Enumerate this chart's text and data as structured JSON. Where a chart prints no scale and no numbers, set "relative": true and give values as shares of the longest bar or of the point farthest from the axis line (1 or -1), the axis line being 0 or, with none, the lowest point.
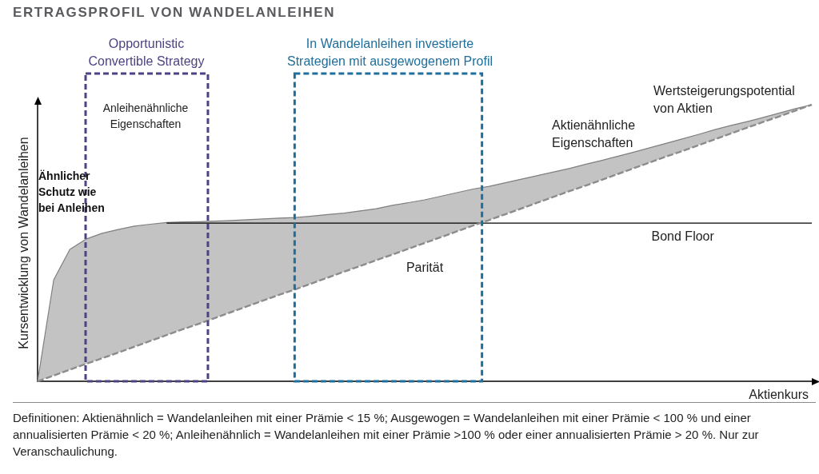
{
  "chart_data": {
    "type": "line",
    "title": "ERTRAGSPROFIL VON WANDELANLEIHEN",
    "xlabel": "Aktienkurs",
    "ylabel": "Kursentwicklung von Wandelanleihen",
    "relative": true,
    "marker": "none",
    "categories": [
      null,
      null,
      null,
      null,
      null,
      null,
      null,
      null,
      null,
      null,
      null,
      null,
      null,
      null,
      null,
      null,
      null,
      null,
      null,
      null,
      null,
      null,
      null,
      null,
      null,
      null,
      null,
      null,
      null,
      null,
      null,
      null,
      null,
      null,
      null,
      null,
      null,
      null,
      null,
      null,
      null,
      null,
      null,
      null,
      null,
      null,
      null,
      null,
      null
    ],
    "series": [
      {
        "color": "#7f7f7f",
        "values": [
          0,
          0.367,
          0.477,
          0.514,
          0.535,
          0.549,
          0.561,
          0.568,
          0.574,
          0.576,
          0.577,
          0.579,
          0.581,
          0.584,
          0.587,
          0.59,
          0.592,
          0.597,
          0.603,
          0.608,
          0.616,
          0.624,
          0.636,
          0.646,
          0.656,
          0.669,
          0.682,
          0.695,
          0.705,
          0.718,
          0.731,
          0.744,
          0.757,
          0.77,
          0.785,
          0.799,
          0.814,
          0.829,
          0.845,
          0.861,
          0.877,
          0.893,
          0.91,
          0.925,
          0.939,
          0.954,
          0.97,
          0.986,
          1
        ],
        "upper": [
          0,
          0.367,
          0.477,
          0.514,
          0.535,
          0.549,
          0.561,
          0.568,
          0.574,
          0.576,
          0.577,
          0.579,
          0.581,
          0.584,
          0.587,
          0.59,
          0.592,
          0.597,
          0.603,
          0.608,
          0.616,
          0.624,
          0.636,
          0.646,
          0.656,
          0.669,
          0.682,
          0.695,
          0.705,
          0.718,
          0.731,
          0.744,
          0.757,
          0.77,
          0.785,
          0.799,
          0.814,
          0.829,
          0.845,
          0.861,
          0.877,
          0.893,
          0.91,
          0.925,
          0.939,
          0.954,
          0.97,
          0.986,
          1
        ],
        "lower": [
          0,
          0.021,
          0.042,
          0.063,
          0.083,
          0.104,
          0.125,
          0.146,
          0.167,
          0.188,
          0.208,
          0.229,
          0.25,
          0.271,
          0.292,
          0.313,
          0.333,
          0.354,
          0.375,
          0.396,
          0.417,
          0.438,
          0.458,
          0.479,
          0.5,
          0.521,
          0.542,
          0.563,
          0.583,
          0.604,
          0.625,
          0.646,
          0.667,
          0.688,
          0.708,
          0.729,
          0.75,
          0.771,
          0.792,
          0.813,
          0.833,
          0.854,
          0.875,
          0.896,
          0.917,
          0.938,
          0.958,
          0.979,
          1
        ]
      },
      {
        "name": "Bond Floor",
        "color": "#000000",
        "values": [
          null,
          null,
          null,
          null,
          null,
          null,
          null,
          null,
          0.572,
          0.572,
          0.572,
          0.572,
          0.572,
          0.572,
          0.572,
          0.572,
          0.572,
          0.572,
          0.572,
          0.572,
          0.572,
          0.572,
          0.572,
          0.572,
          0.572,
          0.572,
          0.572,
          0.572,
          0.572,
          0.572,
          0.572,
          0.572,
          0.572,
          0.572,
          0.572,
          0.572,
          0.572,
          0.572,
          0.572,
          0.572,
          0.572,
          0.572,
          0.572,
          0.572,
          0.572,
          0.572,
          0.572,
          0.572,
          0.572
        ]
      },
      {
        "name": "Parität",
        "color": "#8c8c8c",
        "line_style": "dashed",
        "values": [
          0,
          0.021,
          0.042,
          0.063,
          0.083,
          0.104,
          0.125,
          0.146,
          0.167,
          0.188,
          0.208,
          0.229,
          0.25,
          0.271,
          0.292,
          0.313,
          0.333,
          0.354,
          0.375,
          0.396,
          0.417,
          0.438,
          0.458,
          0.479,
          0.5,
          0.521,
          0.542,
          0.563,
          0.583,
          0.604,
          0.625,
          0.646,
          0.667,
          0.688,
          0.708,
          0.729,
          0.75,
          0.771,
          0.792,
          0.813,
          0.833,
          0.854,
          0.875,
          0.896,
          0.917,
          0.938,
          0.958,
          0.979,
          1
        ]
      }
    ],
    "annotations": [
      "Opportunistic Convertible Strategy",
      "In Wandelanleihen investierte Strategien mit ausgewogenem Profil",
      "Anleihenähnliche Eigenschaften",
      "Ähnlicher Schutz wie bei Anleihen",
      "Aktienähnliche Eigenschaften",
      "Wertsteigerungspotential von Aktien",
      "Definitionen: Aktienähnlich = Wandelanleihen mit einer Prämie < 15 %; Ausgewogen = Wandelanleihen mit einer Prämie < 100 % und einer annualisierten Prämie < 20 %; Anleihenähnlich = Wandelanleihen mit einer Prämie >100 % oder einer annualisierten Prämie > 20 %. Nur zur Veranschaulichung."
    ]
  }
}
